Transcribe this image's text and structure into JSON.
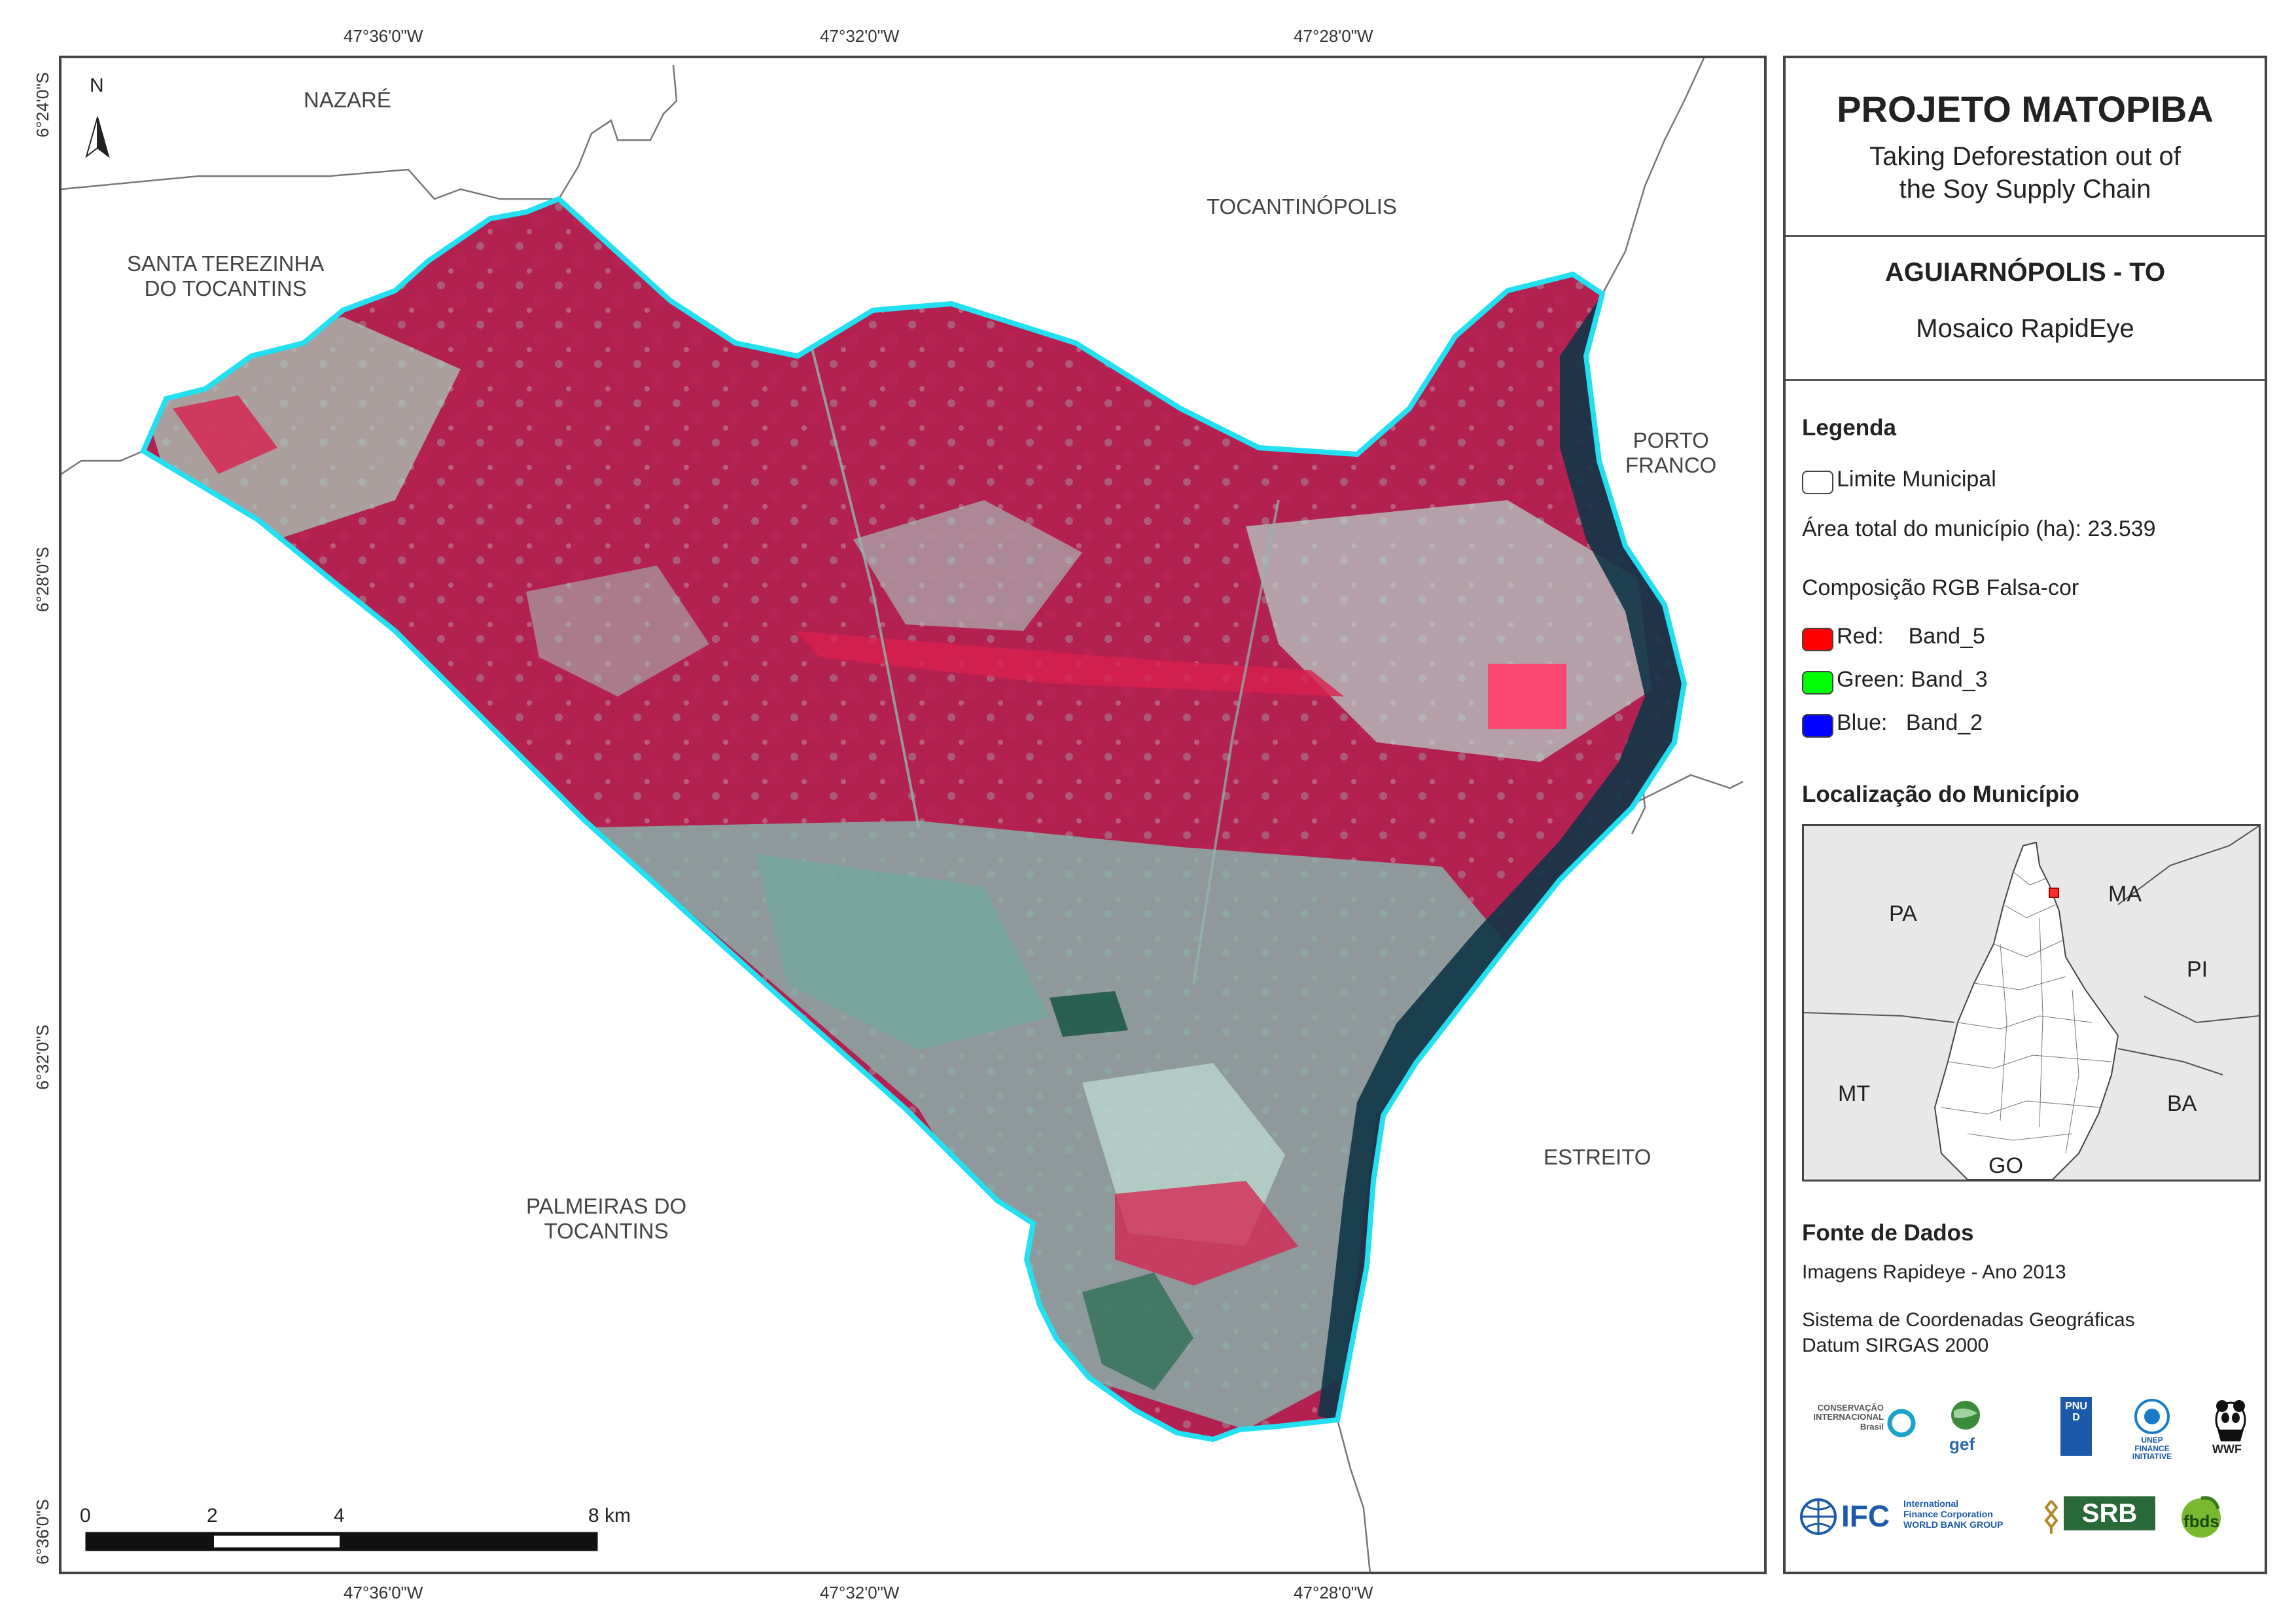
{
  "coords": {
    "top": [
      "47°36'0\"W",
      "47°32'0\"W",
      "47°28'0\"W"
    ],
    "bottom": [
      "47°36'0\"W",
      "47°32'0\"W",
      "47°28'0\"W"
    ],
    "left": [
      "6°24'0\"S",
      "6°28'0\"S",
      "6°32'0\"S",
      "6°36'0\"S"
    ]
  },
  "municipalities": {
    "nazare": "NAZARÉ",
    "santa_terezinha": "SANTA TEREZINHA\nDO TOCANTINS",
    "tocantinopolis": "TOCANTINÓPOLIS",
    "porto_franco": "PORTO\nFRANCO",
    "estreito": "ESTREITO",
    "palmeiras": "PALMEIRAS DO\nTOCANTINS"
  },
  "north_arrow": "N",
  "scale_bar": {
    "labels": [
      "0",
      "2",
      "4",
      "8 km"
    ]
  },
  "panel": {
    "title": "PROJETO MATOPIBA",
    "subtitle": "Taking Deforestation out of\nthe Soy Supply Chain",
    "municipio": "AGUIARNÓPOLIS - TO",
    "mosaico": "Mosaico RapidEye",
    "legenda_title": "Legenda",
    "limite": "Limite Municipal",
    "area": "Área total do município (ha): 23.539",
    "composicao": "Composição RGB Falsa-cor",
    "bands": [
      {
        "label": "Red:    Band_5",
        "color": "#ff0000"
      },
      {
        "label": "Green: Band_3",
        "color": "#00ff00"
      },
      {
        "label": "Blue:   Band_2",
        "color": "#0000ff"
      }
    ],
    "localizacao_title": "Localização do Município",
    "inset_labels": {
      "pa": "PA",
      "ma": "MA",
      "pi": "PI",
      "mt": "MT",
      "ba": "BA",
      "go": "GO"
    },
    "fonte_title": "Fonte de Dados",
    "fonte_1": "Imagens Rapideye - Ano 2013",
    "fonte_2": "Sistema de Coordenadas Geográficas\nDatum SIRGAS 2000"
  },
  "logos": {
    "ci": "CONSERVAÇÃO\nINTERNACIONAL\nBrasil",
    "gef": "gef",
    "undp": "PNUD",
    "unep": "UNEP\nFINANCE\nINITIATIVE",
    "wwf": "WWF",
    "ifc": "IFC",
    "ifc_text": "International\nFinance Corporation\nWORLD BANK GROUP",
    "srb": "SRB",
    "fbds": "fbds"
  },
  "colors": {
    "boundary": "#22e0f0",
    "vegetation": "#b3204a",
    "cleared": "#8fb8b0",
    "water": "#0a2a3a"
  }
}
